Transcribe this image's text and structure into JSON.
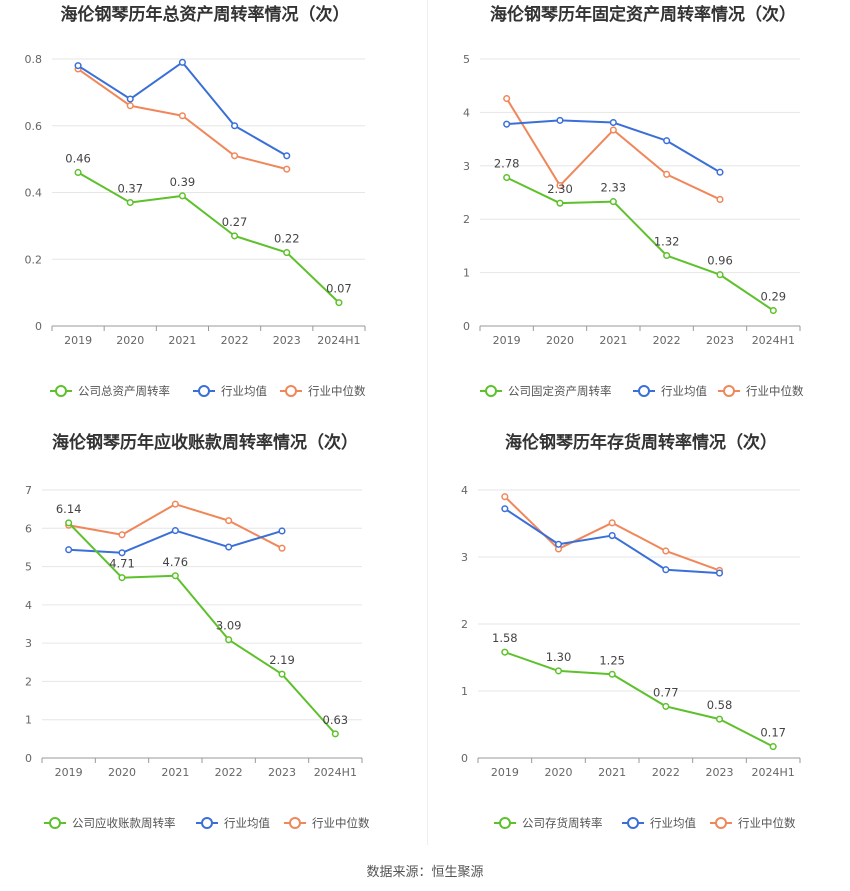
{
  "footer": {
    "source": "数据来源：恒生聚源"
  },
  "legend": {
    "industry_avg": "行业均值",
    "industry_median": "行业中位数"
  },
  "colors": {
    "company": "#5dc12b",
    "industry_avg": "#3a6fd8",
    "industry_median": "#f0875a",
    "grid": "#e6e6e6",
    "axis": "#999999"
  },
  "chart_data": [
    {
      "type": "line",
      "title": "海伦钢琴历年总资产周转率情况（次）",
      "categories": [
        "2019",
        "2020",
        "2021",
        "2022",
        "2023",
        "2024H1"
      ],
      "ylim": [
        0,
        0.8
      ],
      "yticks": [
        0,
        0.2,
        0.4,
        0.6,
        0.8
      ],
      "ytick_labels": [
        "0",
        "0.2",
        "0.4",
        "0.6",
        "0.8"
      ],
      "legend_position": "bottom",
      "series": [
        {
          "name": "公司总资产周转率",
          "values": [
            0.46,
            0.37,
            0.39,
            0.27,
            0.22,
            0.07
          ],
          "labels": [
            "0.46",
            "0.37",
            "0.39",
            "0.27",
            "0.22",
            "0.07"
          ]
        },
        {
          "name": "行业均值",
          "values": [
            0.78,
            0.68,
            0.79,
            0.6,
            0.51,
            null
          ]
        },
        {
          "name": "行业中位数",
          "values": [
            0.77,
            0.66,
            0.63,
            0.51,
            0.47,
            null
          ]
        }
      ]
    },
    {
      "type": "line",
      "title": "海伦钢琴历年固定资产周转率情况（次）",
      "categories": [
        "2019",
        "2020",
        "2021",
        "2022",
        "2023",
        "2024H1"
      ],
      "ylim": [
        0,
        5
      ],
      "yticks": [
        0,
        1,
        2,
        3,
        4,
        5
      ],
      "ytick_labels": [
        "0",
        "1",
        "2",
        "3",
        "4",
        "5"
      ],
      "legend_position": "bottom",
      "series": [
        {
          "name": "公司固定资产周转率",
          "values": [
            2.78,
            2.3,
            2.33,
            1.32,
            0.96,
            0.29
          ],
          "labels": [
            "2.78",
            "2.30",
            "2.33",
            "1.32",
            "0.96",
            "0.29"
          ]
        },
        {
          "name": "行业均值",
          "values": [
            3.78,
            3.85,
            3.81,
            3.47,
            2.88,
            null
          ]
        },
        {
          "name": "行业中位数",
          "values": [
            4.26,
            2.63,
            3.67,
            2.84,
            2.37,
            null
          ]
        }
      ]
    },
    {
      "type": "line",
      "title": "海伦钢琴历年应收账款周转率情况（次）",
      "categories": [
        "2019",
        "2020",
        "2021",
        "2022",
        "2023",
        "2024H1"
      ],
      "ylim": [
        0,
        7
      ],
      "yticks": [
        0,
        1,
        2,
        3,
        4,
        5,
        6,
        7
      ],
      "ytick_labels": [
        "0",
        "1",
        "2",
        "3",
        "4",
        "5",
        "6",
        "7"
      ],
      "legend_position": "bottom",
      "series": [
        {
          "name": "公司应收账款周转率",
          "values": [
            6.14,
            4.71,
            4.76,
            3.09,
            2.19,
            0.63
          ],
          "labels": [
            "6.14",
            "4.71",
            "4.76",
            "3.09",
            "2.19",
            "0.63"
          ]
        },
        {
          "name": "行业均值",
          "values": [
            5.44,
            5.36,
            5.94,
            5.51,
            5.93,
            null
          ]
        },
        {
          "name": "行业中位数",
          "values": [
            6.08,
            5.83,
            6.63,
            6.2,
            5.48,
            null
          ]
        }
      ]
    },
    {
      "type": "line",
      "title": "海伦钢琴历年存货周转率情况（次）",
      "categories": [
        "2019",
        "2020",
        "2021",
        "2022",
        "2023",
        "2024H1"
      ],
      "ylim": [
        0,
        4
      ],
      "yticks": [
        0,
        1,
        2,
        3,
        4
      ],
      "ytick_labels": [
        "0",
        "1",
        "2",
        "3",
        "4"
      ],
      "legend_position": "bottom",
      "series": [
        {
          "name": "公司存货周转率",
          "values": [
            1.58,
            1.3,
            1.25,
            0.77,
            0.58,
            0.17
          ],
          "labels": [
            "1.58",
            "1.30",
            "1.25",
            "0.77",
            "0.58",
            "0.17"
          ]
        },
        {
          "name": "行业均值",
          "values": [
            3.72,
            3.19,
            3.32,
            2.81,
            2.76,
            null
          ]
        },
        {
          "name": "行业中位数",
          "values": [
            3.9,
            3.12,
            3.51,
            3.09,
            2.8,
            null
          ]
        }
      ]
    }
  ]
}
